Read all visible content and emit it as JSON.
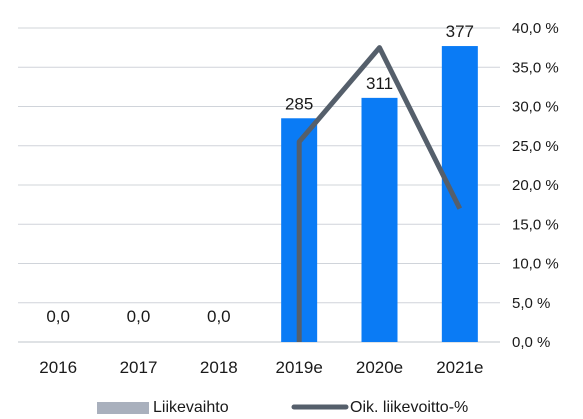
{
  "chart_data": {
    "type": "bar",
    "categories": [
      "2016",
      "2017",
      "2018",
      "2019e",
      "2020e",
      "2021e"
    ],
    "series": [
      {
        "name": "Liikevaihto",
        "type": "bar",
        "values": [
          0.0,
          0.0,
          0.0,
          285,
          311,
          377
        ],
        "data_labels": [
          "0,0",
          "0,0",
          "0,0",
          "285",
          "311",
          "377"
        ],
        "color": "#0a7bf5",
        "axis": "left"
      },
      {
        "name": "Oik. liikevoitto-%",
        "type": "line",
        "values": [
          null,
          null,
          null,
          25.5,
          37.5,
          17.0
        ],
        "color": "#555f6b",
        "axis": "right"
      }
    ],
    "ylim_left": [
      0,
      400
    ],
    "ylim_right": [
      0,
      40
    ],
    "y_right_ticks": [
      "0,0 %",
      "5,0 %",
      "10,0 %",
      "15,0 %",
      "20,0 %",
      "25,0 %",
      "30,0 %",
      "35,0 %",
      "40,0 %"
    ],
    "grid": true,
    "legend": {
      "position": "bottom",
      "items": [
        {
          "label": "Liikevaihto",
          "swatch": "bar",
          "color": "#a9b0bd"
        },
        {
          "label": "Oik. liikevoitto-%",
          "swatch": "line",
          "color": "#555f6b"
        }
      ]
    }
  }
}
